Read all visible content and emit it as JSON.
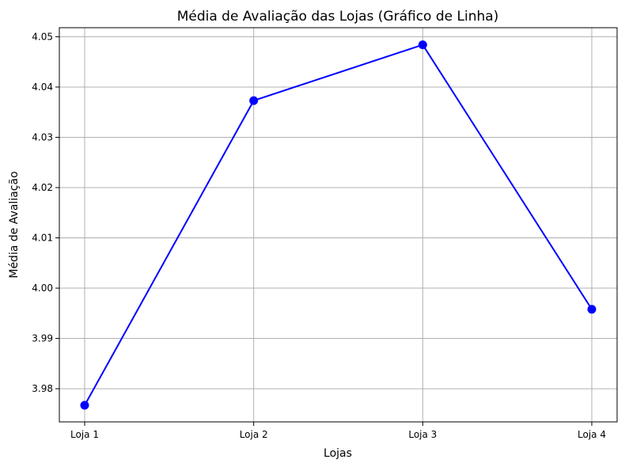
{
  "chart_data": {
    "type": "line",
    "title": "Média de Avaliação das Lojas (Gráfico de Linha)",
    "xlabel": "Lojas",
    "ylabel": "Média de Avaliação",
    "categories": [
      "Loja 1",
      "Loja 2",
      "Loja 3",
      "Loja 4"
    ],
    "series": [
      {
        "values": [
          3.9767,
          4.0373,
          4.0484,
          3.9958
        ],
        "color": "#0000ff",
        "marker": "circle"
      }
    ],
    "ylim": [
      3.9734,
      4.0518
    ],
    "yticks": [
      3.98,
      3.99,
      4.0,
      4.01,
      4.02,
      4.03,
      4.04,
      4.05
    ],
    "ytick_labels": [
      "3.98",
      "3.99",
      "4.00",
      "4.01",
      "4.02",
      "4.03",
      "4.04",
      "4.05"
    ],
    "grid": true,
    "legend": "none"
  }
}
